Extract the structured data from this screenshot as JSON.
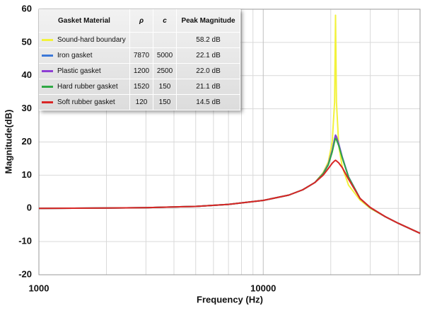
{
  "chart_data": {
    "type": "line",
    "xlabel": "Frequency (Hz)",
    "ylabel": "Magnitude(dB)",
    "x_log_scale": true,
    "xlim": [
      1000,
      50000
    ],
    "xticks": [
      1000,
      10000
    ],
    "x_minor_gridlines": [
      2000,
      3000,
      4000,
      5000,
      6000,
      7000,
      8000,
      9000,
      20000,
      30000,
      40000
    ],
    "ylim": [
      -20,
      60
    ],
    "yticks": [
      -20,
      -10,
      0,
      10,
      20,
      30,
      40,
      50,
      60
    ],
    "grid": true,
    "table_header": [
      "Gasket Material",
      "ρ",
      "c",
      "Peak Magnitude"
    ],
    "x": [
      1000,
      2000,
      3000,
      5000,
      7000,
      10000,
      13000,
      15000,
      17000,
      18500,
      19500,
      20300,
      20800,
      21000,
      21200,
      21700,
      22500,
      24000,
      27000,
      30000,
      35000,
      40000,
      50000
    ],
    "series": [
      {
        "name": "Sound-hard boundary",
        "color": "#f2f23c",
        "rho": null,
        "c": null,
        "peak_label": "58.2 dB",
        "values": [
          0,
          0.1,
          0.2,
          0.6,
          1.2,
          2.4,
          4.0,
          5.6,
          7.8,
          10.8,
          14,
          20,
          32,
          58.2,
          32,
          19,
          12.5,
          7,
          2.5,
          0,
          -2.5,
          -4.5,
          -7.5
        ]
      },
      {
        "name": "Iron gasket",
        "color": "#3c78d8",
        "rho": 7870,
        "c": 5000,
        "peak_label": "22.1 dB",
        "values": [
          0,
          0.1,
          0.2,
          0.6,
          1.2,
          2.4,
          4.0,
          5.6,
          7.8,
          10.5,
          13.3,
          17.5,
          21.0,
          22.1,
          21.6,
          19.5,
          15.5,
          9.5,
          3,
          0.2,
          -2.5,
          -4.5,
          -7.5
        ]
      },
      {
        "name": "Plastic gasket",
        "color": "#8e3fd4",
        "rho": 1200,
        "c": 2500,
        "peak_label": "22.0 dB",
        "values": [
          0,
          0.1,
          0.2,
          0.6,
          1.2,
          2.4,
          4.0,
          5.6,
          7.8,
          10.5,
          13.3,
          17.5,
          20.9,
          22.0,
          21.5,
          19.4,
          15.4,
          9.5,
          3,
          0.2,
          -2.5,
          -4.5,
          -7.5
        ]
      },
      {
        "name": "Hard rubber gasket",
        "color": "#2fa844",
        "rho": 1520,
        "c": 150,
        "peak_label": "21.1 dB",
        "values": [
          0,
          0.1,
          0.2,
          0.6,
          1.2,
          2.4,
          4.0,
          5.6,
          7.8,
          10.4,
          13.1,
          17.0,
          20.2,
          21.1,
          20.7,
          18.9,
          15.2,
          9.4,
          3,
          0.2,
          -2.5,
          -4.5,
          -7.5
        ]
      },
      {
        "name": "Soft rubber gasket",
        "color": "#d92626",
        "rho": 120,
        "c": 150,
        "peak_label": "14.5 dB",
        "values": [
          0,
          0.1,
          0.2,
          0.6,
          1.2,
          2.4,
          4.0,
          5.6,
          7.8,
          10.0,
          12.0,
          13.6,
          14.3,
          14.5,
          14.3,
          13.7,
          12.3,
          8.8,
          3,
          0.3,
          -2.5,
          -4.5,
          -7.5
        ]
      }
    ]
  }
}
